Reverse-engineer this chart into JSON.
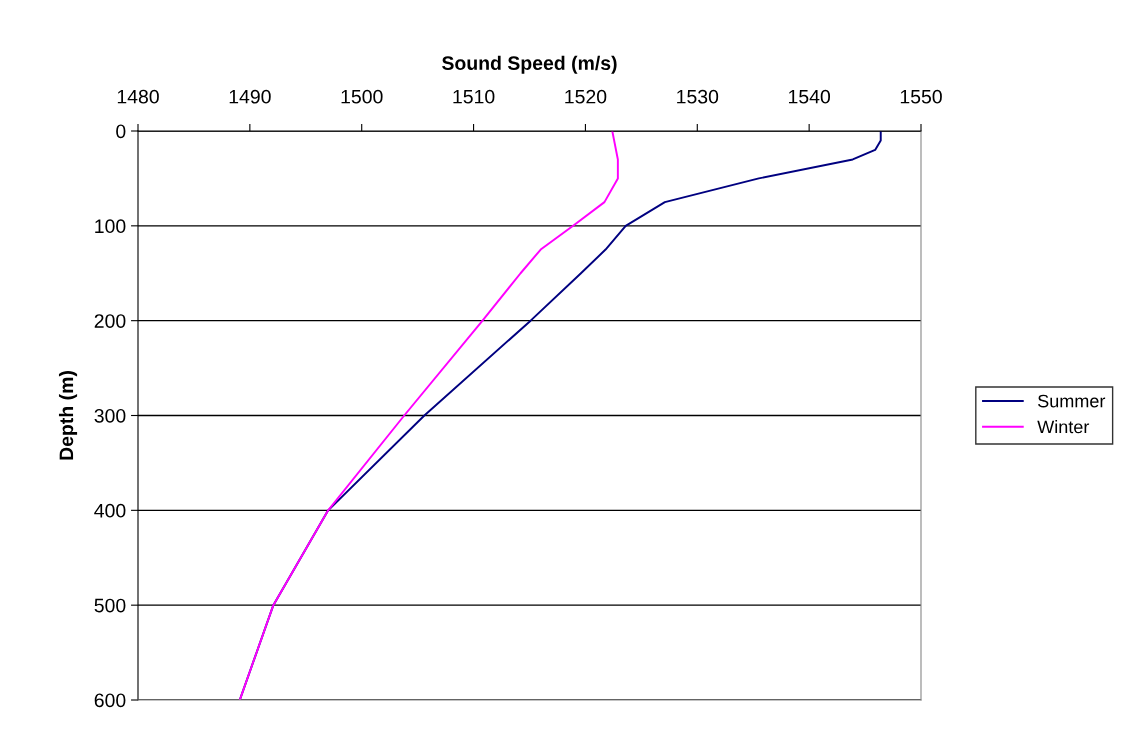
{
  "chart_data": {
    "type": "line",
    "xlabel": "Sound Speed (m/s)",
    "ylabel": "Depth (m)",
    "series": [
      {
        "name": "Summer",
        "color": "#000080",
        "x": [
          1546.4,
          1546.4,
          1545.9,
          1543.9,
          1535.5,
          1527.1,
          1523.6,
          1521.8,
          1519.6,
          1515.1,
          1505.6,
          1497.0,
          1492.1,
          1489.1
        ],
        "values": [
          0,
          10,
          20,
          30,
          50,
          75,
          100,
          125,
          150,
          200,
          300,
          400,
          500,
          600
        ]
      },
      {
        "name": "Winter",
        "color": "#ff00ff",
        "x": [
          1522.4,
          1522.9,
          1522.9,
          1521.7,
          1518.9,
          1516.0,
          1514.2,
          1510.8,
          1503.8,
          1497.0,
          1492.1,
          1489.1
        ],
        "values": [
          0,
          30,
          50,
          75,
          100,
          125,
          150,
          200,
          300,
          400,
          500,
          600
        ]
      }
    ],
    "xlim": [
      1480,
      1550
    ],
    "xticks": [
      1480,
      1490,
      1500,
      1510,
      1520,
      1530,
      1540,
      1550
    ],
    "ylim": [
      600,
      0
    ],
    "yticks": [
      0,
      100,
      200,
      300,
      400,
      500,
      600
    ],
    "grid": "y",
    "legend": "right",
    "marker": "none",
    "line_style": "solid"
  }
}
